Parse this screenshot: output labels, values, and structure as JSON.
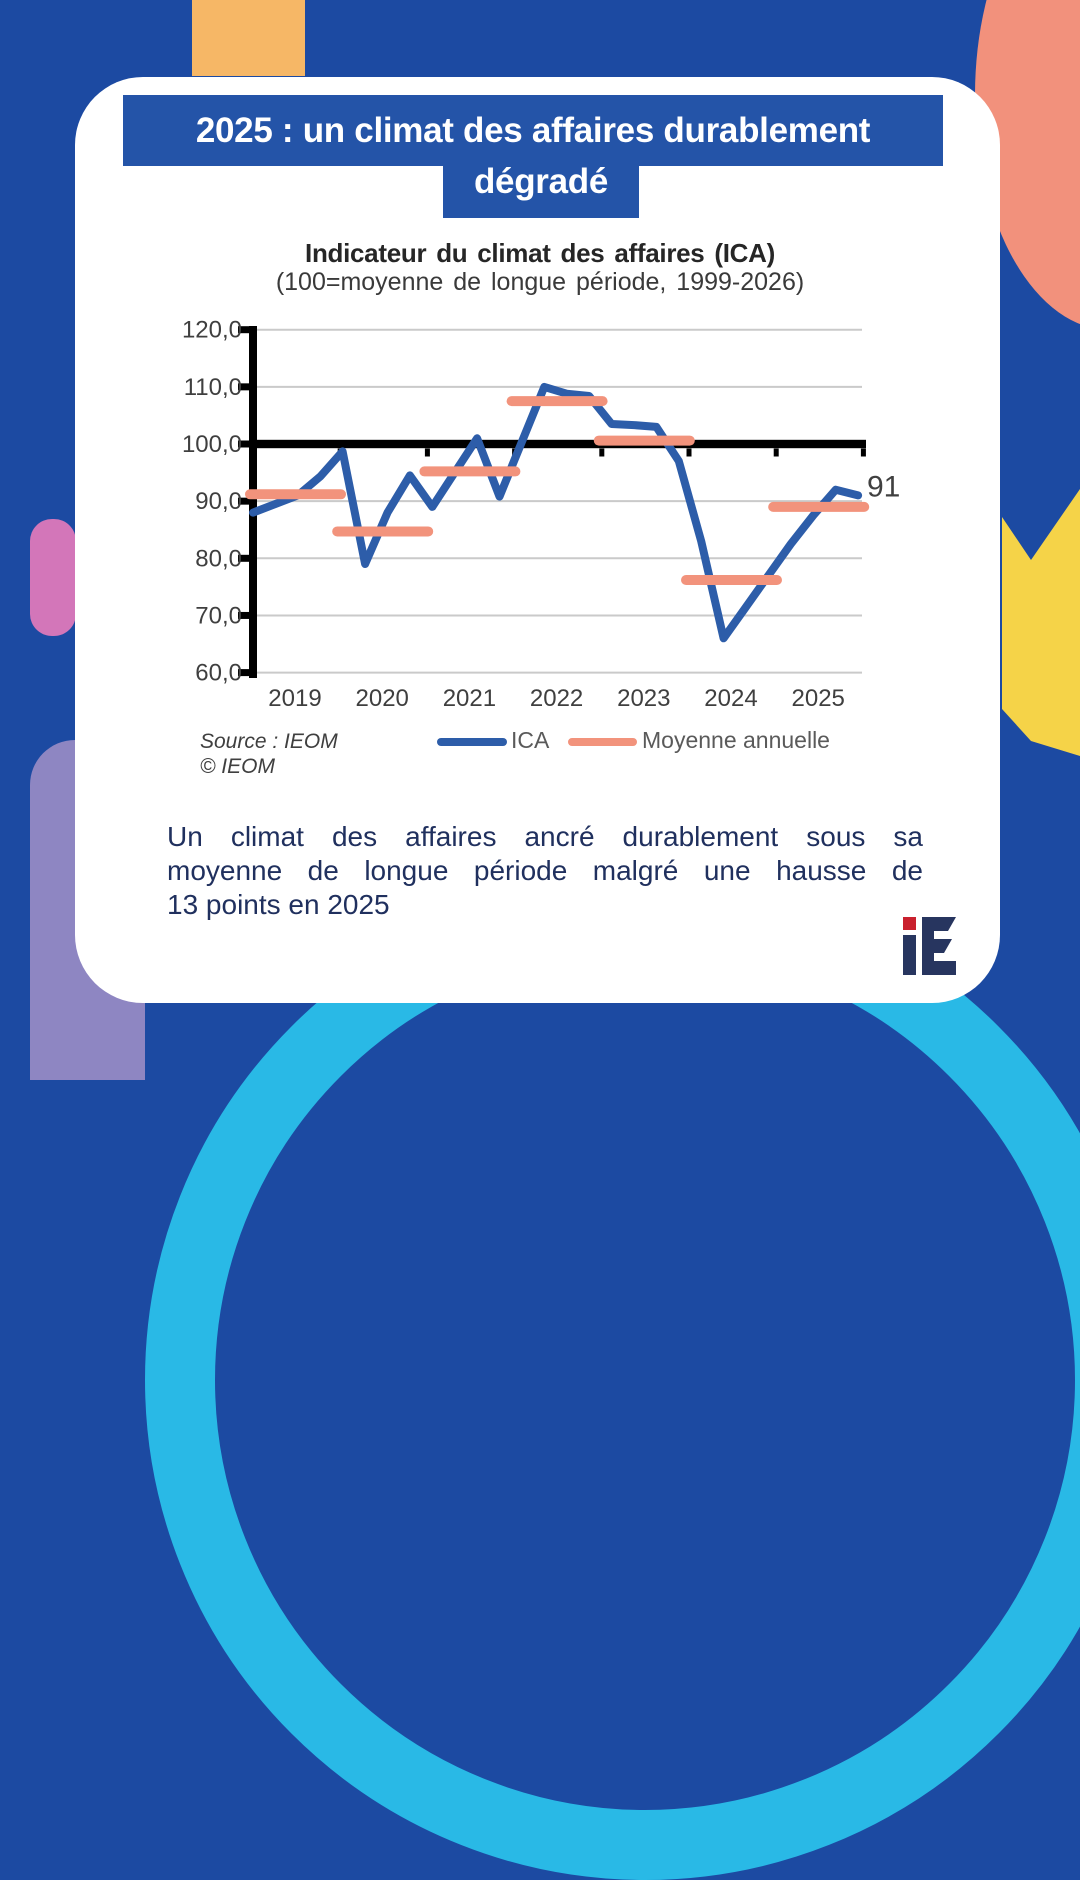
{
  "banner": {
    "line1": "2025 : un climat des affaires durablement",
    "line2": "dégradé"
  },
  "chart": {
    "title": "Indicateur du climat des affaires (ICA)",
    "subtitle": "(100=moyenne de longue période, 1999-2026)",
    "source": {
      "line1": "Source : IEOM",
      "line2": "© IEOM"
    },
    "legend": [
      {
        "label": "ICA",
        "color": "#2D5DA9"
      },
      {
        "label": "Moyenne annuelle",
        "color": "#F2937C"
      }
    ],
    "end_label": "91"
  },
  "chart_data": {
    "type": "line",
    "title": "Indicateur du climat des affaires (ICA)",
    "subtitle": "(100=moyenne de longue période, 1999-2026)",
    "ylim": [
      60,
      120
    ],
    "ytick_step": 10,
    "baseline": 100,
    "grid": true,
    "legend_position": "bottom",
    "x_years": [
      2019,
      2020,
      2021,
      2022,
      2023,
      2024,
      2025
    ],
    "series": [
      {
        "name": "ICA",
        "kind": "line",
        "color": "#2D5DA9",
        "frequency": "quarterly",
        "start": "2018-T4",
        "values": [
          88.0,
          89.5,
          91.0,
          94.3,
          98.7,
          79.0,
          88.0,
          94.5,
          89.0,
          95.0,
          101.0,
          90.8,
          100.4,
          110.0,
          108.8,
          108.4,
          103.5,
          103.3,
          103.0,
          97.0,
          83.0,
          66.0,
          71.5,
          77.0,
          82.5,
          87.5,
          92.0,
          91.0
        ]
      },
      {
        "name": "Moyenne annuelle",
        "kind": "horizontal-segments",
        "color": "#F2937C",
        "segments": [
          {
            "year": 2019,
            "value": 91.2
          },
          {
            "year": 2020,
            "value": 84.7
          },
          {
            "year": 2021,
            "value": 95.2
          },
          {
            "year": 2022,
            "value": 107.5
          },
          {
            "year": 2023,
            "value": 100.6
          },
          {
            "year": 2024,
            "value": 76.2
          },
          {
            "year": 2025,
            "value": 89.0
          }
        ]
      }
    ],
    "end_label": {
      "text": "91",
      "series": "ICA",
      "value": 91
    }
  },
  "body": {
    "lines": [
      "Un climat des affaires ancré durablement sous sa",
      "moyenne de longue période malgré une hausse de",
      "13 points en 2025"
    ]
  },
  "logo": {
    "text": "iE"
  },
  "colors": {
    "background": "#1C4AA2",
    "card": "#FFFFFF",
    "banner": "#2454A8",
    "decor_orange": "#F6B766",
    "decor_salmon": "#F2917C",
    "decor_pink": "#D376B9",
    "decor_purple": "#8E86C2",
    "decor_yellow": "#F5D348",
    "decor_cyan": "#29B9E6",
    "logo_navy": "#27355F",
    "logo_red": "#C9202E",
    "line_blue": "#2D5DA9",
    "line_salmon": "#F2937C"
  }
}
